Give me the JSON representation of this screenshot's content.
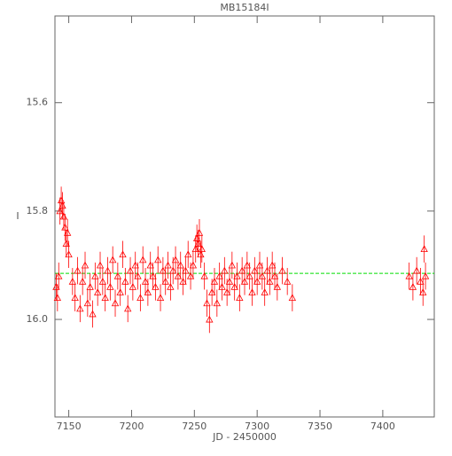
{
  "chart_data": {
    "type": "scatter",
    "title": "MB15184I",
    "xlabel": "JD - 2450000",
    "ylabel": "I",
    "xlim": [
      7139,
      7441
    ],
    "ylim": [
      16.18,
      15.44
    ],
    "xticks": [
      7150,
      7200,
      7250,
      7300,
      7350,
      7400
    ],
    "yticks": [
      15.6,
      15.8,
      {
        "value": 16,
        "label": "16.0"
      }
    ],
    "reference_line": 15.915,
    "reference_color": "#00dd00",
    "series": [
      {
        "name": "I",
        "color": "#ff0000",
        "yerr": 0.025,
        "x": [
          7140,
          7141,
          7142,
          7143,
          7144,
          7145,
          7146,
          7147,
          7148,
          7149,
          7150,
          7153,
          7155,
          7157,
          7159,
          7161,
          7163,
          7165,
          7167,
          7169,
          7171,
          7173,
          7175,
          7177,
          7179,
          7181,
          7183,
          7185,
          7187,
          7189,
          7191,
          7193,
          7195,
          7197,
          7199,
          7201,
          7203,
          7205,
          7207,
          7209,
          7211,
          7213,
          7215,
          7217,
          7219,
          7221,
          7223,
          7225,
          7227,
          7229,
          7231,
          7233,
          7235,
          7237,
          7239,
          7241,
          7243,
          7245,
          7247,
          7249,
          7251,
          7252,
          7253,
          7254,
          7255,
          7256,
          7258,
          7260,
          7262,
          7264,
          7266,
          7268,
          7270,
          7272,
          7274,
          7276,
          7278,
          7280,
          7282,
          7284,
          7286,
          7288,
          7290,
          7292,
          7294,
          7296,
          7298,
          7300,
          7302,
          7304,
          7306,
          7308,
          7310,
          7312,
          7314,
          7316,
          7320,
          7324,
          7328,
          7421,
          7424,
          7427,
          7430,
          7432,
          7433,
          7434
        ],
        "values": [
          15.94,
          15.96,
          15.92,
          15.8,
          15.78,
          15.79,
          15.81,
          15.83,
          15.86,
          15.84,
          15.88,
          15.93,
          15.96,
          15.91,
          15.98,
          15.93,
          15.9,
          15.97,
          15.94,
          15.99,
          15.92,
          15.95,
          15.9,
          15.93,
          15.96,
          15.91,
          15.94,
          15.89,
          15.97,
          15.92,
          15.95,
          15.88,
          15.93,
          15.98,
          15.91,
          15.94,
          15.9,
          15.92,
          15.96,
          15.89,
          15.93,
          15.95,
          15.9,
          15.92,
          15.94,
          15.89,
          15.96,
          15.91,
          15.93,
          15.9,
          15.94,
          15.91,
          15.89,
          15.92,
          15.9,
          15.93,
          15.91,
          15.88,
          15.92,
          15.9,
          15.87,
          15.85,
          15.86,
          15.84,
          15.88,
          15.87,
          15.92,
          15.97,
          16.0,
          15.95,
          15.93,
          15.97,
          15.92,
          15.94,
          15.91,
          15.95,
          15.93,
          15.9,
          15.94,
          15.92,
          15.96,
          15.91,
          15.93,
          15.9,
          15.92,
          15.95,
          15.91,
          15.93,
          15.9,
          15.92,
          15.95,
          15.91,
          15.93,
          15.9,
          15.92,
          15.94,
          15.91,
          15.93,
          15.96,
          15.92,
          15.94,
          15.91,
          15.93,
          15.95,
          15.87,
          15.92
        ]
      }
    ]
  }
}
